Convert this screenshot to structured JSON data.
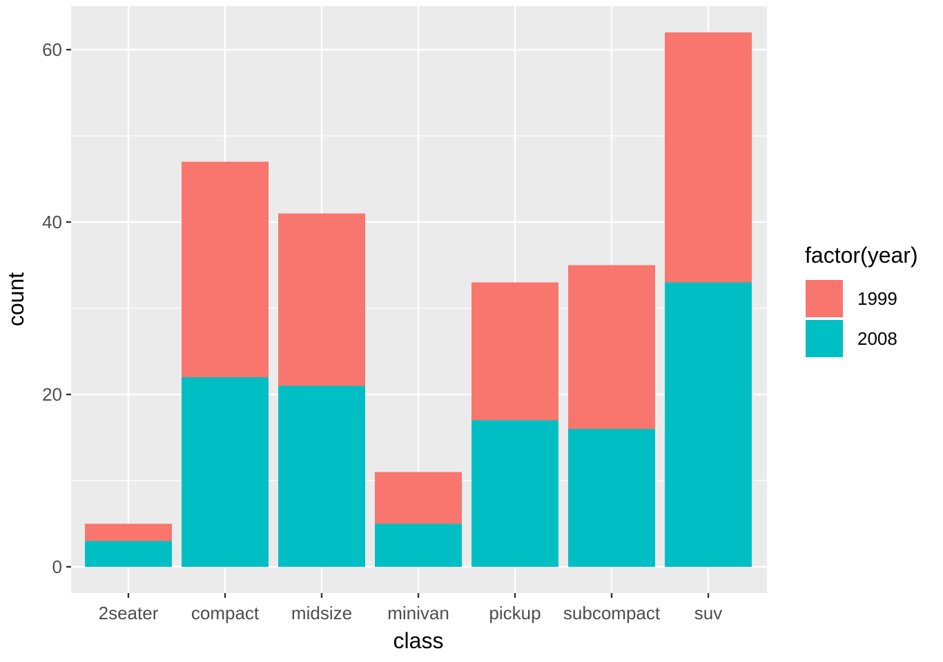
{
  "chart_data": {
    "type": "bar",
    "stacked": true,
    "categories": [
      "2seater",
      "compact",
      "midsize",
      "minivan",
      "pickup",
      "subcompact",
      "suv"
    ],
    "series": [
      {
        "name": "1999",
        "values": [
          2,
          25,
          20,
          6,
          16,
          19,
          29
        ],
        "color": "#F8766D"
      },
      {
        "name": "2008",
        "values": [
          3,
          22,
          21,
          5,
          17,
          16,
          33
        ],
        "color": "#00BFC4"
      }
    ],
    "totals": [
      5,
      47,
      41,
      11,
      33,
      35,
      62
    ],
    "xlabel": "class",
    "ylabel": "count",
    "ylim": [
      -3.1,
      65.1
    ],
    "yticks": [
      0,
      20,
      40,
      60
    ],
    "ytick_labels": [
      "0",
      "20",
      "40",
      "60"
    ],
    "legend": {
      "title": "factor(year)",
      "placement": "right",
      "entries": [
        {
          "label": "1999",
          "color": "#F8766D"
        },
        {
          "label": "2008",
          "color": "#00BFC4"
        }
      ]
    },
    "grid": true,
    "panel_background": "#EBEBEB",
    "gridline_color": "#FFFFFF"
  }
}
